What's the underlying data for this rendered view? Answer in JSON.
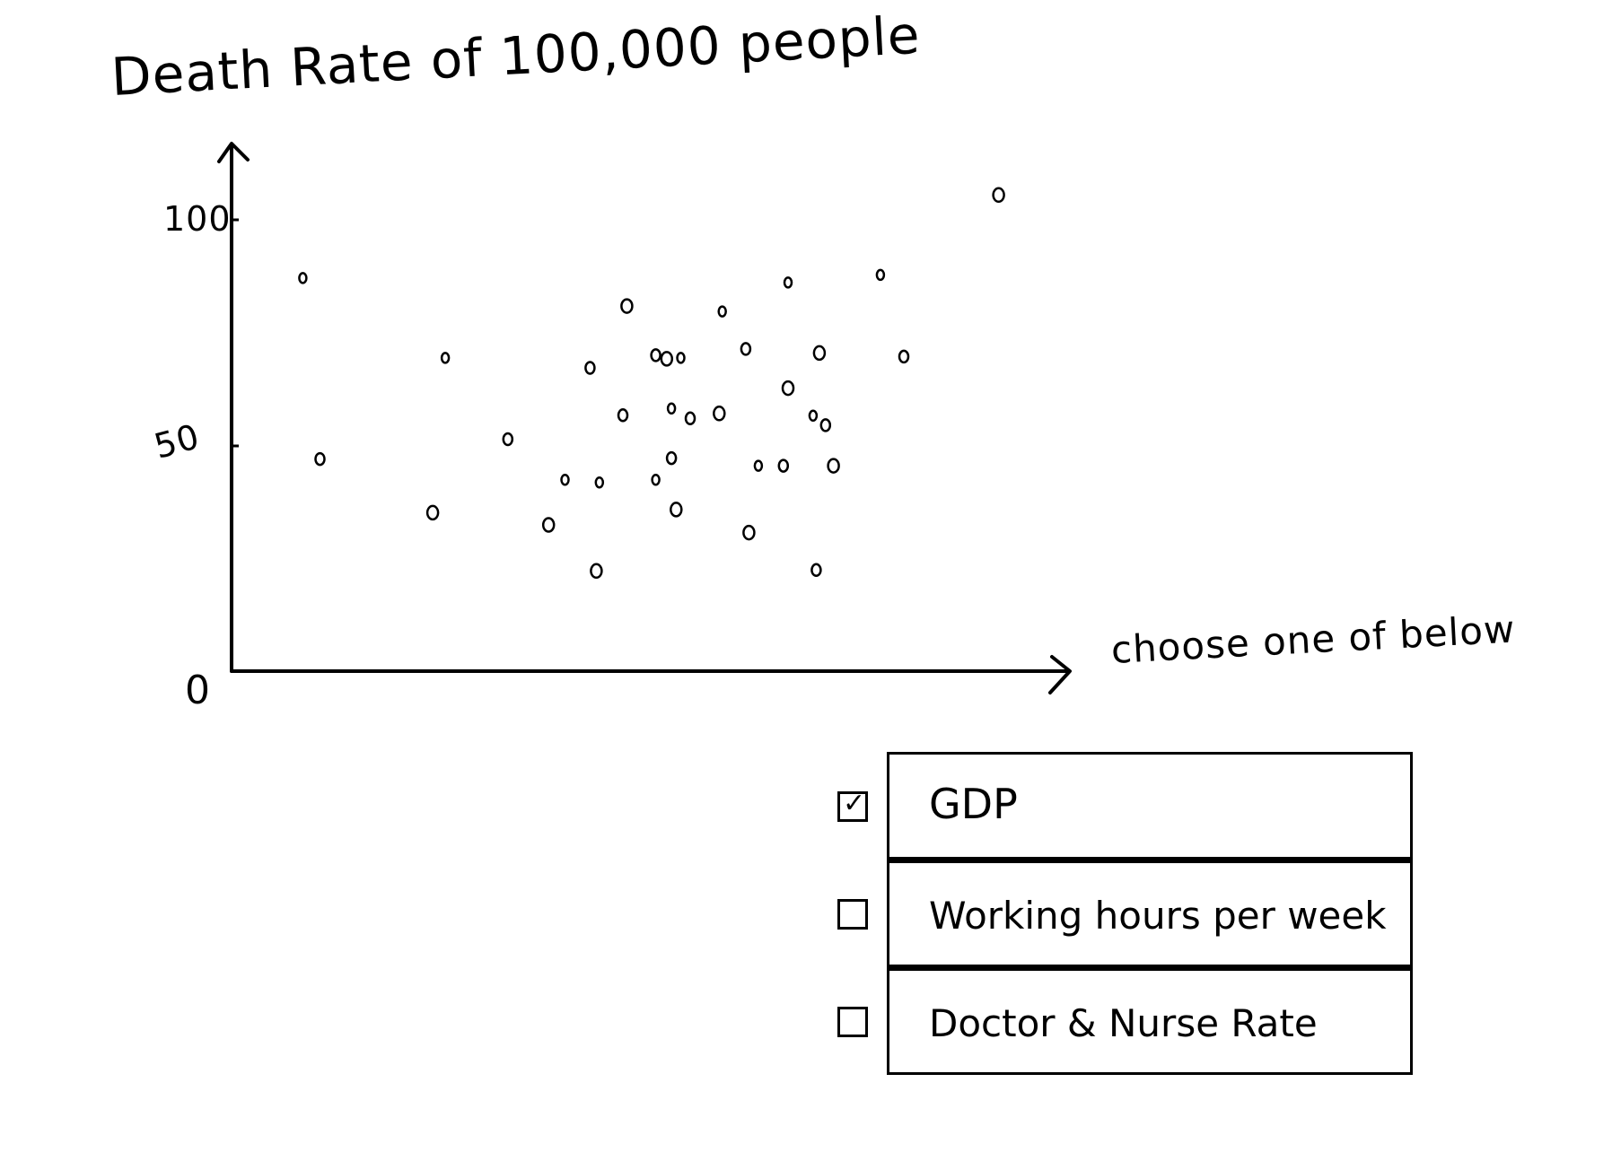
{
  "chart_data": {
    "type": "scatter",
    "title": "",
    "ylabel": "Death Rate of 100,000 people",
    "xlabel": "choose one of below",
    "ylim": [
      0,
      110
    ],
    "xlim": [
      0,
      100
    ],
    "yticks": [
      {
        "value": 0,
        "label": "0"
      },
      {
        "value": 50,
        "label": "50"
      },
      {
        "value": 100,
        "label": "100"
      }
    ],
    "grid": false,
    "points": [
      {
        "x": 9.1,
        "y": 87.1
      },
      {
        "x": 11.3,
        "y": 47.0
      },
      {
        "x": 25.7,
        "y": 35.1
      },
      {
        "x": 27.3,
        "y": 69.4
      },
      {
        "x": 35.3,
        "y": 51.4
      },
      {
        "x": 40.5,
        "y": 32.4
      },
      {
        "x": 42.6,
        "y": 42.4
      },
      {
        "x": 45.8,
        "y": 67.2
      },
      {
        "x": 46.6,
        "y": 22.2
      },
      {
        "x": 47.0,
        "y": 41.8
      },
      {
        "x": 50.0,
        "y": 56.7
      },
      {
        "x": 50.5,
        "y": 80.9
      },
      {
        "x": 54.2,
        "y": 42.4
      },
      {
        "x": 54.2,
        "y": 70.0
      },
      {
        "x": 55.6,
        "y": 69.2
      },
      {
        "x": 56.2,
        "y": 58.2
      },
      {
        "x": 56.2,
        "y": 47.2
      },
      {
        "x": 56.8,
        "y": 35.8
      },
      {
        "x": 57.4,
        "y": 69.4
      },
      {
        "x": 58.6,
        "y": 56.0
      },
      {
        "x": 62.3,
        "y": 57.1
      },
      {
        "x": 62.7,
        "y": 79.7
      },
      {
        "x": 65.7,
        "y": 71.4
      },
      {
        "x": 66.1,
        "y": 30.7
      },
      {
        "x": 67.3,
        "y": 45.5
      },
      {
        "x": 70.5,
        "y": 45.5
      },
      {
        "x": 71.1,
        "y": 62.7
      },
      {
        "x": 71.1,
        "y": 86.1
      },
      {
        "x": 74.7,
        "y": 22.4
      },
      {
        "x": 75.1,
        "y": 70.5
      },
      {
        "x": 74.3,
        "y": 56.6
      },
      {
        "x": 75.9,
        "y": 54.5
      },
      {
        "x": 76.9,
        "y": 45.5
      },
      {
        "x": 82.9,
        "y": 87.8
      },
      {
        "x": 85.9,
        "y": 69.7
      },
      {
        "x": 98.0,
        "y": 105.5
      }
    ]
  },
  "variable_selector": {
    "options": [
      {
        "label": "GDP",
        "checked": true,
        "check_glyph": "✓"
      },
      {
        "label": "Working hours per week",
        "checked": false,
        "check_glyph": ""
      },
      {
        "label": "Doctor & Nurse Rate",
        "checked": false,
        "check_glyph": ""
      }
    ]
  }
}
